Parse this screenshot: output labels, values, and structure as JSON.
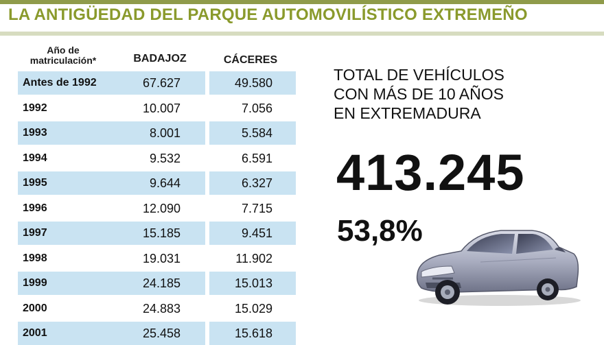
{
  "title": "LA ANTIGÜEDAD DEL PARQUE AUTOMOVILÍSTICO EXTREMEÑO",
  "chart_data": {
    "type": "table",
    "columns": [
      "Año de matriculación*",
      "BADAJOZ",
      "CÁCERES"
    ],
    "rows": [
      {
        "year": "Antes de 1992",
        "badajoz": "67.627",
        "caceres": "49.580"
      },
      {
        "year": "1992",
        "badajoz": "10.007",
        "caceres": "7.056"
      },
      {
        "year": "1993",
        "badajoz": "8.001",
        "caceres": "5.584"
      },
      {
        "year": "1994",
        "badajoz": "9.532",
        "caceres": "6.591"
      },
      {
        "year": "1995",
        "badajoz": "9.644",
        "caceres": "6.327"
      },
      {
        "year": "1996",
        "badajoz": "12.090",
        "caceres": "7.715"
      },
      {
        "year": "1997",
        "badajoz": "15.185",
        "caceres": "9.451"
      },
      {
        "year": "1998",
        "badajoz": "19.031",
        "caceres": "11.902"
      },
      {
        "year": "1999",
        "badajoz": "24.185",
        "caceres": "15.013"
      },
      {
        "year": "2000",
        "badajoz": "24.883",
        "caceres": "15.029"
      },
      {
        "year": "2001",
        "badajoz": "25.458",
        "caceres": "15.618"
      }
    ]
  },
  "summary": {
    "label_lines": [
      "TOTAL DE VEHÍCULOS",
      "CON MÁS DE 10 AÑOS",
      "EN EXTREMADURA"
    ],
    "total": "413.245",
    "percent": "53,8%"
  },
  "colors": {
    "title": "#8a9a2c",
    "accent_bar": "#8f9b4a",
    "row_shade": "#c9e3f2"
  },
  "icons": {
    "car": "car-illustration"
  }
}
